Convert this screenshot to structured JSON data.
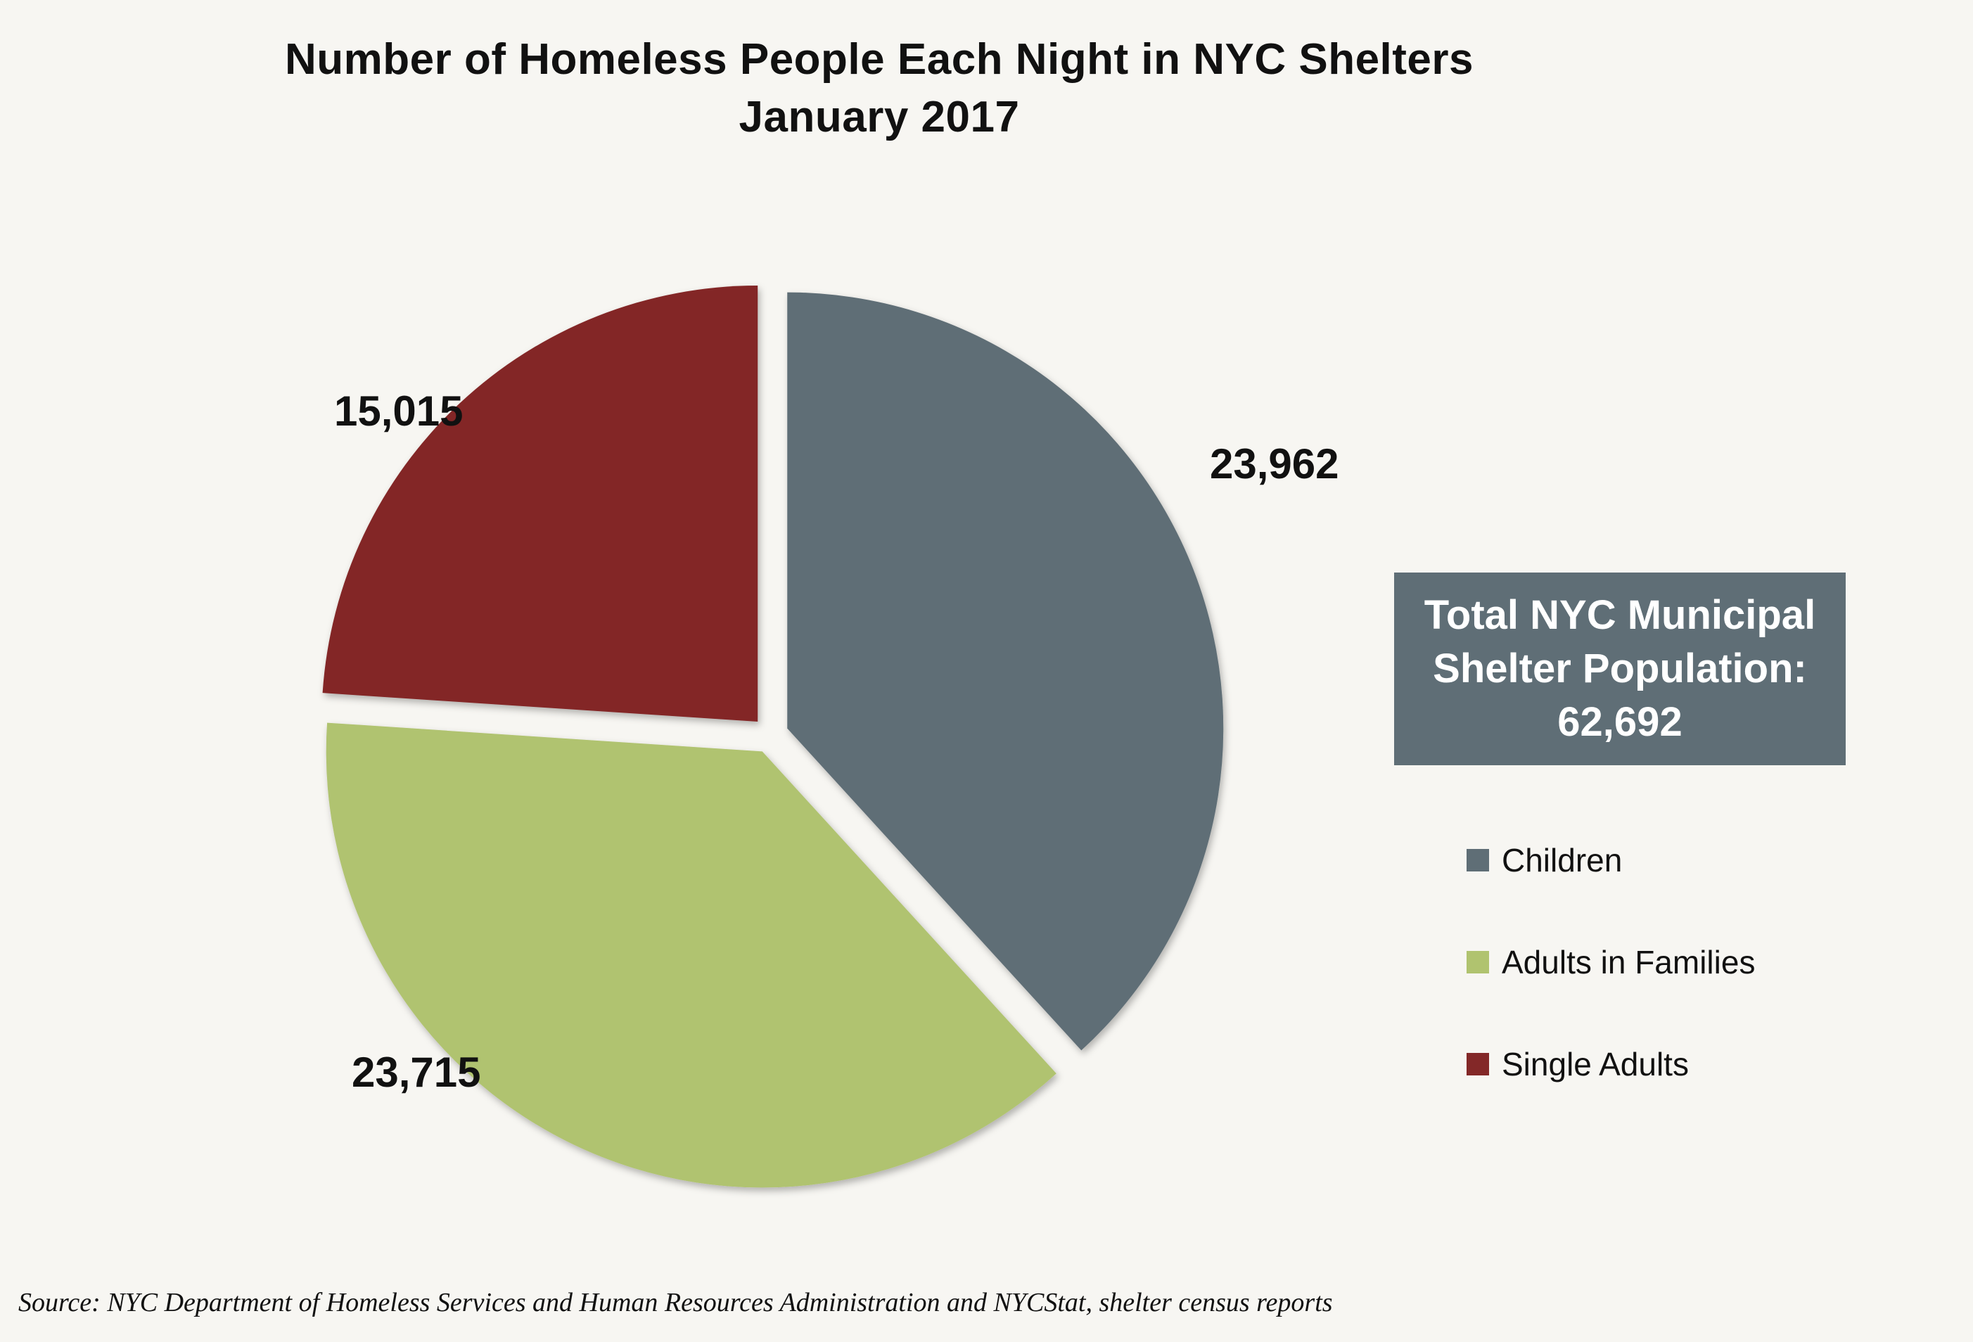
{
  "chart_data": {
    "type": "pie",
    "title": "Number of Homeless People Each Night in NYC Shelters",
    "subtitle": "January 2017",
    "categories": [
      "Children",
      "Adults in Families",
      "Single Adults"
    ],
    "values": [
      23962,
      23715,
      15015
    ],
    "value_labels": [
      "23,962",
      "23,715",
      "15,015"
    ],
    "colors": [
      "#5f6e76",
      "#b0c36f",
      "#832828"
    ],
    "exploded": true,
    "legend_position": "right"
  },
  "total_box": {
    "line1": "Total NYC Municipal",
    "line2": "Shelter Population:",
    "line3": "62,692"
  },
  "legend": {
    "items": [
      {
        "label": "Children",
        "color": "#5f6e76"
      },
      {
        "label": "Adults in Families",
        "color": "#b0c36f"
      },
      {
        "label": "Single Adults",
        "color": "#832828"
      }
    ]
  },
  "source": "Source:  NYC Department of Homeless Services and Human Resources Administration and NYCStat, shelter census reports"
}
